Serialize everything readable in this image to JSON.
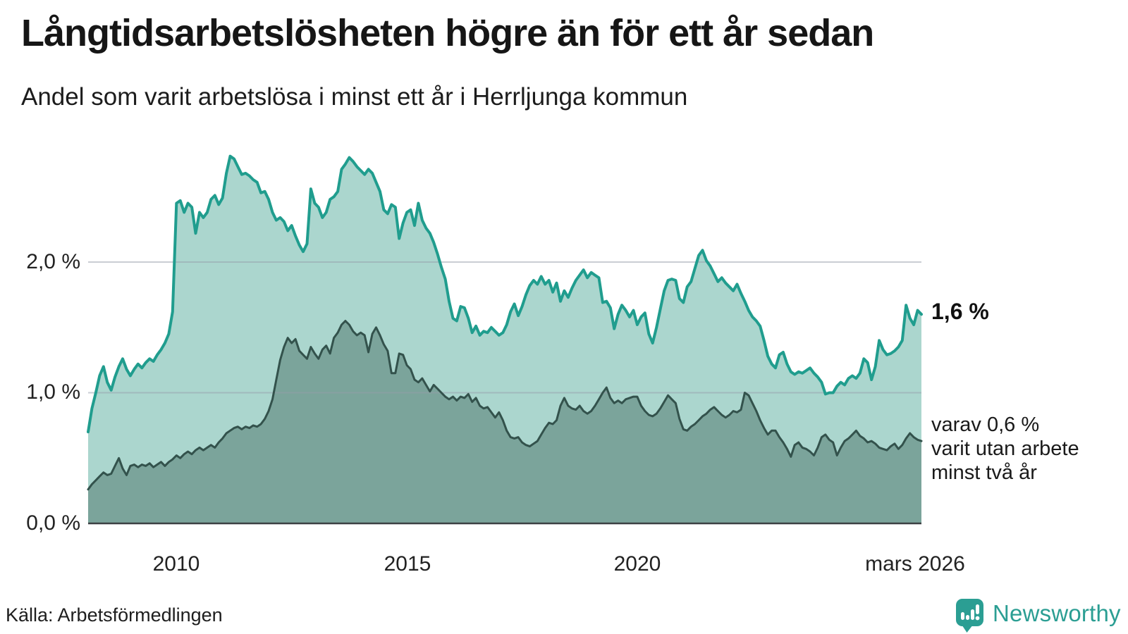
{
  "title": "Långtidsarbetslösheten högre än för ett år sedan",
  "subtitle": "Andel som varit arbetslösa i minst ett år i Herrljunga kommun",
  "source": "Källa: Arbetsförmedlingen",
  "branding": {
    "name": "Newsworthy",
    "color": "#2b9e93",
    "icon": "newsworthy-speech-bubble-bar-chart-icon"
  },
  "annotations": {
    "end_value_label": "1,6 %",
    "secondary_lines": [
      "varav 0,6 %",
      "varit utan arbete",
      "minst två år"
    ]
  },
  "chart_data": {
    "type": "area",
    "title": "Långtidsarbetslösheten högre än för ett år sedan",
    "subtitle": "Andel som varit arbetslösa i minst ett år i Herrljunga kommun",
    "unit": "%",
    "frequency": "monthly",
    "x_start": "2008-02",
    "x_end": "2026-03",
    "x_tick_labels": [
      "2010",
      "2015",
      "2020",
      "mars 2026"
    ],
    "y_tick_labels": [
      "0,0 %",
      "1,0 %",
      "2,0 %"
    ],
    "y_gridlines": [
      1.0,
      2.0
    ],
    "ylim": [
      0,
      2.93
    ],
    "grid": "horizontal-only",
    "legend_position": "inline-right-annotations",
    "background": "#ffffff",
    "series": [
      {
        "name": "Andel arbetslösa minst ett år",
        "end_value": 1.6,
        "end_label": "1,6 %",
        "line_color": "#209d8e",
        "fill_color": "#abd6ce",
        "values": [
          0.7,
          0.88,
          1.0,
          1.13,
          1.2,
          1.08,
          1.02,
          1.12,
          1.2,
          1.26,
          1.18,
          1.13,
          1.18,
          1.22,
          1.19,
          1.23,
          1.26,
          1.24,
          1.29,
          1.33,
          1.38,
          1.45,
          1.62,
          2.45,
          2.47,
          2.38,
          2.45,
          2.42,
          2.22,
          2.38,
          2.34,
          2.38,
          2.48,
          2.51,
          2.44,
          2.49,
          2.68,
          2.81,
          2.79,
          2.73,
          2.67,
          2.68,
          2.66,
          2.63,
          2.61,
          2.53,
          2.54,
          2.48,
          2.38,
          2.32,
          2.34,
          2.31,
          2.24,
          2.28,
          2.2,
          2.13,
          2.08,
          2.14,
          2.56,
          2.45,
          2.42,
          2.34,
          2.38,
          2.48,
          2.5,
          2.54,
          2.71,
          2.75,
          2.8,
          2.77,
          2.73,
          2.7,
          2.67,
          2.71,
          2.68,
          2.61,
          2.54,
          2.4,
          2.37,
          2.44,
          2.42,
          2.18,
          2.3,
          2.38,
          2.4,
          2.28,
          2.45,
          2.32,
          2.26,
          2.22,
          2.15,
          2.06,
          1.96,
          1.87,
          1.7,
          1.57,
          1.55,
          1.66,
          1.65,
          1.57,
          1.46,
          1.51,
          1.44,
          1.47,
          1.46,
          1.5,
          1.47,
          1.44,
          1.46,
          1.52,
          1.62,
          1.68,
          1.59,
          1.66,
          1.75,
          1.82,
          1.86,
          1.83,
          1.89,
          1.83,
          1.86,
          1.77,
          1.84,
          1.7,
          1.78,
          1.73,
          1.8,
          1.86,
          1.9,
          1.94,
          1.88,
          1.92,
          1.9,
          1.88,
          1.69,
          1.7,
          1.65,
          1.49,
          1.6,
          1.67,
          1.63,
          1.58,
          1.63,
          1.52,
          1.58,
          1.61,
          1.45,
          1.38,
          1.5,
          1.64,
          1.78,
          1.86,
          1.87,
          1.86,
          1.72,
          1.69,
          1.81,
          1.85,
          1.95,
          2.05,
          2.09,
          2.01,
          1.97,
          1.91,
          1.85,
          1.88,
          1.84,
          1.81,
          1.78,
          1.83,
          1.76,
          1.7,
          1.63,
          1.58,
          1.55,
          1.51,
          1.4,
          1.28,
          1.22,
          1.19,
          1.29,
          1.31,
          1.22,
          1.16,
          1.14,
          1.16,
          1.15,
          1.17,
          1.19,
          1.15,
          1.12,
          1.08,
          0.99,
          1.0,
          1.0,
          1.05,
          1.08,
          1.06,
          1.11,
          1.13,
          1.11,
          1.15,
          1.26,
          1.23,
          1.1,
          1.2,
          1.4,
          1.33,
          1.29,
          1.3,
          1.32,
          1.35,
          1.4,
          1.67,
          1.57,
          1.52,
          1.63,
          1.6
        ]
      },
      {
        "name": "varav utan arbete minst två år",
        "end_value": 0.6,
        "end_label": "varav 0,6 % varit utan arbete minst två år",
        "line_color": "#33524c",
        "fill_color": "#7ba49b",
        "values": [
          0.26,
          0.3,
          0.33,
          0.36,
          0.39,
          0.37,
          0.38,
          0.44,
          0.5,
          0.42,
          0.37,
          0.44,
          0.45,
          0.43,
          0.45,
          0.44,
          0.46,
          0.43,
          0.45,
          0.47,
          0.44,
          0.47,
          0.49,
          0.52,
          0.5,
          0.53,
          0.55,
          0.53,
          0.56,
          0.58,
          0.56,
          0.58,
          0.6,
          0.58,
          0.62,
          0.65,
          0.69,
          0.71,
          0.73,
          0.74,
          0.72,
          0.74,
          0.73,
          0.75,
          0.74,
          0.76,
          0.8,
          0.86,
          0.95,
          1.1,
          1.25,
          1.35,
          1.42,
          1.38,
          1.41,
          1.32,
          1.29,
          1.26,
          1.35,
          1.3,
          1.26,
          1.33,
          1.36,
          1.3,
          1.42,
          1.46,
          1.52,
          1.55,
          1.52,
          1.47,
          1.44,
          1.46,
          1.44,
          1.31,
          1.45,
          1.5,
          1.44,
          1.37,
          1.32,
          1.15,
          1.15,
          1.3,
          1.29,
          1.21,
          1.18,
          1.1,
          1.08,
          1.11,
          1.06,
          1.01,
          1.06,
          1.03,
          1.0,
          0.97,
          0.95,
          0.97,
          0.94,
          0.97,
          0.96,
          0.99,
          0.93,
          0.96,
          0.9,
          0.88,
          0.89,
          0.85,
          0.81,
          0.85,
          0.79,
          0.71,
          0.66,
          0.65,
          0.66,
          0.62,
          0.6,
          0.59,
          0.61,
          0.63,
          0.68,
          0.73,
          0.77,
          0.76,
          0.79,
          0.9,
          0.96,
          0.9,
          0.88,
          0.87,
          0.9,
          0.86,
          0.84,
          0.86,
          0.9,
          0.95,
          1.0,
          1.04,
          0.96,
          0.92,
          0.94,
          0.92,
          0.95,
          0.96,
          0.97,
          0.97,
          0.9,
          0.86,
          0.83,
          0.82,
          0.84,
          0.88,
          0.93,
          0.98,
          0.95,
          0.92,
          0.8,
          0.72,
          0.71,
          0.74,
          0.76,
          0.79,
          0.82,
          0.84,
          0.87,
          0.89,
          0.86,
          0.83,
          0.81,
          0.83,
          0.86,
          0.85,
          0.87,
          1.0,
          0.98,
          0.92,
          0.86,
          0.79,
          0.73,
          0.68,
          0.71,
          0.71,
          0.66,
          0.62,
          0.57,
          0.51,
          0.6,
          0.62,
          0.58,
          0.57,
          0.55,
          0.52,
          0.58,
          0.66,
          0.68,
          0.64,
          0.62,
          0.52,
          0.58,
          0.63,
          0.65,
          0.68,
          0.71,
          0.67,
          0.65,
          0.62,
          0.63,
          0.61,
          0.58,
          0.57,
          0.56,
          0.59,
          0.61,
          0.57,
          0.6,
          0.65,
          0.69,
          0.66,
          0.64,
          0.63
        ]
      }
    ]
  }
}
